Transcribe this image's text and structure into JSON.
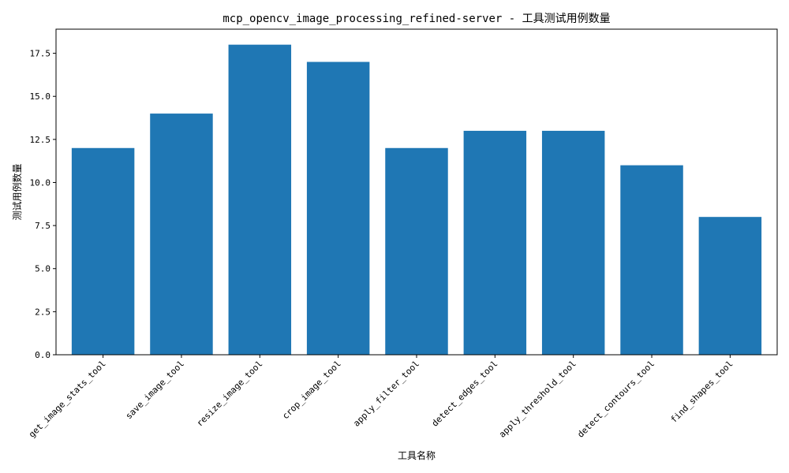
{
  "chart_data": {
    "type": "bar",
    "title": "mcp_opencv_image_processing_refined-server - 工具测试用例数量",
    "xlabel": "工具名称",
    "ylabel": "测试用例数量",
    "categories": [
      "get_image_stats_tool",
      "save_image_tool",
      "resize_image_tool",
      "crop_image_tool",
      "apply_filter_tool",
      "detect_edges_tool",
      "apply_threshold_tool",
      "detect_contours_tool",
      "find_shapes_tool"
    ],
    "values": [
      12,
      14,
      18,
      17,
      12,
      13,
      13,
      11,
      8
    ],
    "ylim": [
      0,
      18.9
    ],
    "yticks": [
      0.0,
      2.5,
      5.0,
      7.5,
      10.0,
      12.5,
      15.0,
      17.5
    ],
    "ytick_labels": [
      "0.0",
      "2.5",
      "5.0",
      "7.5",
      "10.0",
      "12.5",
      "15.0",
      "17.5"
    ],
    "bar_color": "#1f77b4",
    "grid": false,
    "legend": "none"
  }
}
